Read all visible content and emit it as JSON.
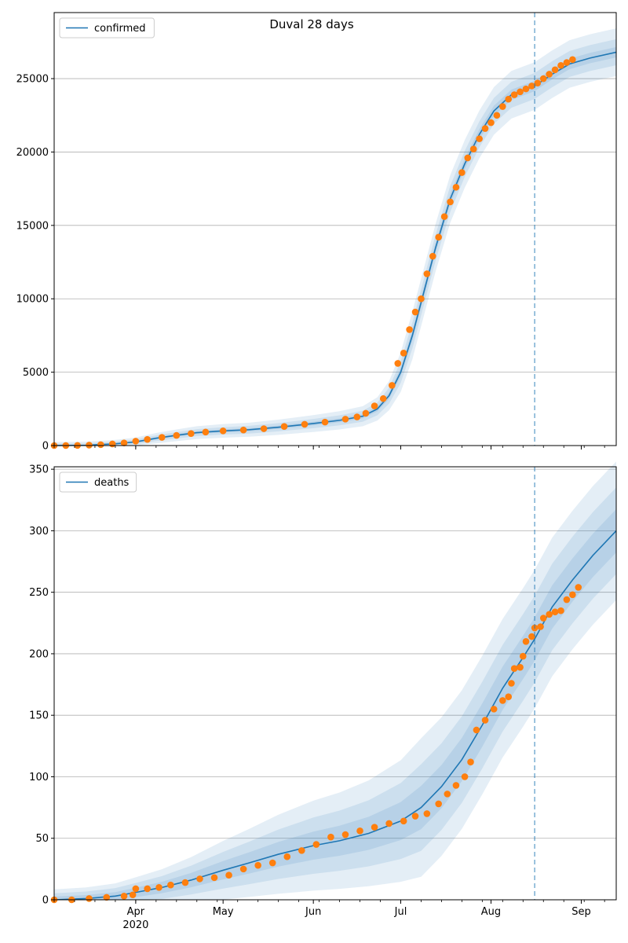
{
  "figure": {
    "title": "Duval 28 days"
  },
  "colors": {
    "model_line": "#1f77b4",
    "observed": "#ff7f0e",
    "band": "#1f77b4",
    "grid": "#b0b0b0",
    "divider": "#1f77b4"
  },
  "chart_data": [
    {
      "type": "line",
      "legend": "confirmed",
      "legend_position": "top-left",
      "grid": "horizontal",
      "x_range": [
        "2020-03-04",
        "2020-09-13"
      ],
      "ylim": [
        0,
        29500
      ],
      "y_ticks": [
        0,
        5000,
        10000,
        15000,
        20000,
        25000
      ],
      "y_tick_labels": [
        "0",
        "5000",
        "10000",
        "15000",
        "20000",
        "25000"
      ],
      "forecast_start": "2020-08-16",
      "model": {
        "name": "confirmed",
        "points": [
          [
            "2020-03-04",
            0
          ],
          [
            "2020-03-15",
            20
          ],
          [
            "2020-03-25",
            120
          ],
          [
            "2020-04-01",
            250
          ],
          [
            "2020-04-08",
            500
          ],
          [
            "2020-04-15",
            700
          ],
          [
            "2020-04-22",
            880
          ],
          [
            "2020-05-01",
            1000
          ],
          [
            "2020-05-10",
            1080
          ],
          [
            "2020-05-20",
            1250
          ],
          [
            "2020-06-01",
            1500
          ],
          [
            "2020-06-10",
            1720
          ],
          [
            "2020-06-18",
            2000
          ],
          [
            "2020-06-23",
            2500
          ],
          [
            "2020-06-27",
            3400
          ],
          [
            "2020-07-01",
            5000
          ],
          [
            "2020-07-05",
            7500
          ],
          [
            "2020-07-09",
            10500
          ],
          [
            "2020-07-13",
            13500
          ],
          [
            "2020-07-18",
            16800
          ],
          [
            "2020-07-23",
            19200
          ],
          [
            "2020-07-28",
            21200
          ],
          [
            "2020-08-02",
            22800
          ],
          [
            "2020-08-08",
            23900
          ],
          [
            "2020-08-16",
            24500
          ],
          [
            "2020-08-22",
            25300
          ],
          [
            "2020-08-28",
            26000
          ],
          [
            "2020-09-04",
            26400
          ],
          [
            "2020-09-13",
            26800
          ]
        ],
        "band_spread": [
          0.012,
          0.03,
          0.055
        ]
      },
      "observed": {
        "points": [
          [
            "2020-03-04",
            0
          ],
          [
            "2020-03-08",
            2
          ],
          [
            "2020-03-12",
            10
          ],
          [
            "2020-03-16",
            30
          ],
          [
            "2020-03-20",
            60
          ],
          [
            "2020-03-24",
            110
          ],
          [
            "2020-03-28",
            180
          ],
          [
            "2020-04-01",
            300
          ],
          [
            "2020-04-05",
            420
          ],
          [
            "2020-04-10",
            560
          ],
          [
            "2020-04-15",
            690
          ],
          [
            "2020-04-20",
            820
          ],
          [
            "2020-04-25",
            920
          ],
          [
            "2020-05-01",
            1000
          ],
          [
            "2020-05-08",
            1060
          ],
          [
            "2020-05-15",
            1150
          ],
          [
            "2020-05-22",
            1300
          ],
          [
            "2020-05-29",
            1450
          ],
          [
            "2020-06-05",
            1600
          ],
          [
            "2020-06-12",
            1800
          ],
          [
            "2020-06-16",
            1950
          ],
          [
            "2020-06-19",
            2200
          ],
          [
            "2020-06-22",
            2700
          ],
          [
            "2020-06-25",
            3200
          ],
          [
            "2020-06-28",
            4100
          ],
          [
            "2020-06-30",
            5600
          ],
          [
            "2020-07-02",
            6300
          ],
          [
            "2020-07-04",
            7900
          ],
          [
            "2020-07-06",
            9100
          ],
          [
            "2020-07-08",
            10000
          ],
          [
            "2020-07-10",
            11700
          ],
          [
            "2020-07-12",
            12900
          ],
          [
            "2020-07-14",
            14200
          ],
          [
            "2020-07-16",
            15600
          ],
          [
            "2020-07-18",
            16600
          ],
          [
            "2020-07-20",
            17600
          ],
          [
            "2020-07-22",
            18600
          ],
          [
            "2020-07-24",
            19600
          ],
          [
            "2020-07-26",
            20200
          ],
          [
            "2020-07-28",
            20900
          ],
          [
            "2020-07-30",
            21600
          ],
          [
            "2020-08-01",
            22000
          ],
          [
            "2020-08-03",
            22500
          ],
          [
            "2020-08-05",
            23100
          ],
          [
            "2020-08-07",
            23600
          ],
          [
            "2020-08-09",
            23900
          ],
          [
            "2020-08-11",
            24100
          ],
          [
            "2020-08-13",
            24300
          ],
          [
            "2020-08-15",
            24500
          ],
          [
            "2020-08-17",
            24700
          ],
          [
            "2020-08-19",
            25000
          ],
          [
            "2020-08-21",
            25300
          ],
          [
            "2020-08-23",
            25600
          ],
          [
            "2020-08-25",
            25900
          ],
          [
            "2020-08-27",
            26100
          ],
          [
            "2020-08-29",
            26300
          ]
        ]
      }
    },
    {
      "type": "line",
      "legend": "deaths",
      "legend_position": "top-left",
      "grid": "horizontal",
      "x_range": [
        "2020-03-04",
        "2020-09-13"
      ],
      "ylim": [
        0,
        352
      ],
      "y_ticks": [
        0,
        50,
        100,
        150,
        200,
        250,
        300,
        350
      ],
      "y_tick_labels": [
        "0",
        "50",
        "100",
        "150",
        "200",
        "250",
        "300",
        "350"
      ],
      "x_ticks": [
        {
          "date": "2020-04-01",
          "label": "Apr",
          "sublabel": "2020"
        },
        {
          "date": "2020-05-01",
          "label": "May"
        },
        {
          "date": "2020-06-01",
          "label": "Jun"
        },
        {
          "date": "2020-07-01",
          "label": "Jul"
        },
        {
          "date": "2020-08-01",
          "label": "Aug"
        },
        {
          "date": "2020-09-01",
          "label": "Sep"
        }
      ],
      "forecast_start": "2020-08-16",
      "model": {
        "name": "deaths",
        "points": [
          [
            "2020-03-04",
            0
          ],
          [
            "2020-03-15",
            1
          ],
          [
            "2020-03-25",
            3
          ],
          [
            "2020-04-01",
            6
          ],
          [
            "2020-04-10",
            10
          ],
          [
            "2020-04-20",
            16
          ],
          [
            "2020-05-01",
            24
          ],
          [
            "2020-05-10",
            30
          ],
          [
            "2020-05-20",
            37
          ],
          [
            "2020-06-01",
            44
          ],
          [
            "2020-06-10",
            48
          ],
          [
            "2020-06-20",
            54
          ],
          [
            "2020-07-01",
            64
          ],
          [
            "2020-07-08",
            75
          ],
          [
            "2020-07-15",
            92
          ],
          [
            "2020-07-22",
            114
          ],
          [
            "2020-07-29",
            142
          ],
          [
            "2020-08-05",
            172
          ],
          [
            "2020-08-12",
            197
          ],
          [
            "2020-08-16",
            212
          ],
          [
            "2020-08-22",
            238
          ],
          [
            "2020-08-29",
            260
          ],
          [
            "2020-09-05",
            280
          ],
          [
            "2020-09-13",
            300
          ]
        ],
        "band_spread": [
          0.05,
          0.1,
          0.16
        ]
      },
      "observed": {
        "points": [
          [
            "2020-03-04",
            0
          ],
          [
            "2020-03-10",
            0
          ],
          [
            "2020-03-16",
            1
          ],
          [
            "2020-03-22",
            2
          ],
          [
            "2020-03-28",
            3
          ],
          [
            "2020-03-31",
            4
          ],
          [
            "2020-04-01",
            9
          ],
          [
            "2020-04-05",
            9
          ],
          [
            "2020-04-09",
            10
          ],
          [
            "2020-04-13",
            12
          ],
          [
            "2020-04-18",
            14
          ],
          [
            "2020-04-23",
            17
          ],
          [
            "2020-04-28",
            18
          ],
          [
            "2020-05-03",
            20
          ],
          [
            "2020-05-08",
            25
          ],
          [
            "2020-05-13",
            28
          ],
          [
            "2020-05-18",
            30
          ],
          [
            "2020-05-23",
            35
          ],
          [
            "2020-05-28",
            40
          ],
          [
            "2020-06-02",
            45
          ],
          [
            "2020-06-07",
            51
          ],
          [
            "2020-06-12",
            53
          ],
          [
            "2020-06-17",
            56
          ],
          [
            "2020-06-22",
            59
          ],
          [
            "2020-06-27",
            62
          ],
          [
            "2020-07-02",
            64
          ],
          [
            "2020-07-06",
            68
          ],
          [
            "2020-07-10",
            70
          ],
          [
            "2020-07-14",
            78
          ],
          [
            "2020-07-17",
            86
          ],
          [
            "2020-07-20",
            93
          ],
          [
            "2020-07-23",
            100
          ],
          [
            "2020-07-25",
            112
          ],
          [
            "2020-07-27",
            138
          ],
          [
            "2020-07-30",
            146
          ],
          [
            "2020-08-02",
            155
          ],
          [
            "2020-08-05",
            162
          ],
          [
            "2020-08-07",
            165
          ],
          [
            "2020-08-08",
            176
          ],
          [
            "2020-08-09",
            188
          ],
          [
            "2020-08-11",
            189
          ],
          [
            "2020-08-12",
            198
          ],
          [
            "2020-08-13",
            210
          ],
          [
            "2020-08-15",
            214
          ],
          [
            "2020-08-16",
            221
          ],
          [
            "2020-08-18",
            222
          ],
          [
            "2020-08-19",
            229
          ],
          [
            "2020-08-21",
            232
          ],
          [
            "2020-08-23",
            234
          ],
          [
            "2020-08-25",
            235
          ],
          [
            "2020-08-27",
            244
          ],
          [
            "2020-08-29",
            248
          ],
          [
            "2020-08-31",
            254
          ]
        ]
      }
    }
  ]
}
